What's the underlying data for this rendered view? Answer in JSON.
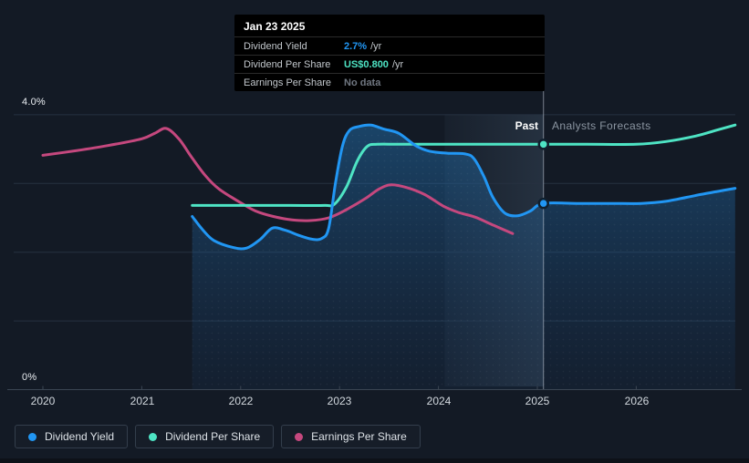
{
  "tooltip": {
    "date": "Jan 23 2025",
    "rows": [
      {
        "label": "Dividend Yield",
        "value": "2.7%",
        "unit": " /yr",
        "color_key": "dividend_yield"
      },
      {
        "label": "Dividend Per Share",
        "value": "US$0.800",
        "unit": " /yr",
        "color_key": "dividend_per_share"
      },
      {
        "label": "Earnings Per Share",
        "value": "No data",
        "unit": "",
        "color_key": "muted"
      }
    ]
  },
  "chart": {
    "past_label": "Past",
    "forecast_label": "Analysts Forecasts",
    "y_axis": {
      "top_label": "4.0%",
      "bottom_label": "0%"
    }
  },
  "legend": [
    {
      "label": "Dividend Yield",
      "color_key": "dividend_yield"
    },
    {
      "label": "Dividend Per Share",
      "color_key": "dividend_per_share"
    },
    {
      "label": "Earnings Per Share",
      "color_key": "earnings_per_share"
    }
  ],
  "colors": {
    "dividend_yield": "#2196f3",
    "dividend_per_share": "#4ee4c4",
    "earnings_per_share": "#c5487e",
    "muted": "#6f7680",
    "area_top": "rgba(38,132,205,0.40)",
    "area_bottom": "rgba(28,80,140,0.10)",
    "band_from": "rgba(150,190,230,0.04)",
    "band_to": "rgba(160,205,245,0.13)",
    "divider": "rgba(205,215,228,0.55)"
  },
  "chart_data": {
    "type": "line",
    "title": "Dividend history and forecast",
    "ylabel": "%",
    "ylim": [
      0,
      4
    ],
    "xlim": [
      2020,
      2027
    ],
    "grid": "horizontal, 1% steps",
    "legend_position": "bottom-left",
    "x_ticks": [
      "2020",
      "2021",
      "2022",
      "2023",
      "2024",
      "2025",
      "2026"
    ],
    "x_tick_years": [
      2020,
      2021,
      2022,
      2023,
      2024,
      2025,
      2026
    ],
    "divider": {
      "x": 2025.062,
      "note": "Past | Analysts Forecasts split at Jan 23 2025"
    },
    "highlight_band": {
      "x_from": 2024.063,
      "x_to": 2025.062
    },
    "series": [
      {
        "name": "Earnings Per Share",
        "color_key": "earnings_per_share",
        "unit": "% of price (left axis)",
        "points": [
          [
            2020.0,
            3.41
          ],
          [
            2020.3,
            3.47
          ],
          [
            2020.65,
            3.55
          ],
          [
            2021.0,
            3.65
          ],
          [
            2021.13,
            3.73
          ],
          [
            2021.25,
            3.8
          ],
          [
            2021.38,
            3.64
          ],
          [
            2021.5,
            3.39
          ],
          [
            2021.64,
            3.12
          ],
          [
            2021.78,
            2.92
          ],
          [
            2022.0,
            2.72
          ],
          [
            2022.15,
            2.6
          ],
          [
            2022.33,
            2.52
          ],
          [
            2022.52,
            2.47
          ],
          [
            2022.7,
            2.46
          ],
          [
            2022.89,
            2.5
          ],
          [
            2023.07,
            2.62
          ],
          [
            2023.26,
            2.78
          ],
          [
            2023.4,
            2.92
          ],
          [
            2023.52,
            2.98
          ],
          [
            2023.68,
            2.94
          ],
          [
            2023.86,
            2.84
          ],
          [
            2024.05,
            2.67
          ],
          [
            2024.2,
            2.58
          ],
          [
            2024.37,
            2.51
          ],
          [
            2024.56,
            2.39
          ],
          [
            2024.75,
            2.27
          ]
        ],
        "ends_at": "late 2024 (No data afterwards)"
      },
      {
        "name": "Dividend Per Share",
        "color_key": "dividend_per_share",
        "unit": "US$ per year (hidden scale; 0.800 corresponds to 3.57 on left axis)",
        "points": [
          [
            2021.51,
            2.68
          ],
          [
            2022.0,
            2.68
          ],
          [
            2022.5,
            2.68
          ],
          [
            2022.85,
            2.68
          ],
          [
            2022.95,
            2.7
          ],
          [
            2023.07,
            2.95
          ],
          [
            2023.18,
            3.33
          ],
          [
            2023.28,
            3.54
          ],
          [
            2023.38,
            3.57
          ],
          [
            2023.6,
            3.57
          ],
          [
            2024.0,
            3.57
          ],
          [
            2024.5,
            3.57
          ],
          [
            2025.06,
            3.57
          ],
          [
            2025.5,
            3.57
          ],
          [
            2026.0,
            3.57
          ],
          [
            2026.3,
            3.61
          ],
          [
            2026.6,
            3.69
          ],
          [
            2026.8,
            3.77
          ],
          [
            2027.0,
            3.85
          ]
        ],
        "usd_estimates": [
          0.6,
          0.6,
          0.6,
          0.6,
          0.604,
          0.661,
          0.746,
          0.793,
          0.8,
          0.8,
          0.8,
          0.8,
          0.8,
          0.8,
          0.8,
          0.809,
          0.827,
          0.845,
          0.863
        ],
        "marker": {
          "x": 2025.062,
          "y": 3.57,
          "value": "US$0.800 /yr"
        }
      },
      {
        "name": "Dividend Yield",
        "color_key": "dividend_yield",
        "unit": "% per year (left axis)",
        "area": true,
        "points": [
          [
            2021.51,
            2.52
          ],
          [
            2021.62,
            2.32
          ],
          [
            2021.73,
            2.17
          ],
          [
            2021.92,
            2.07
          ],
          [
            2022.06,
            2.06
          ],
          [
            2022.2,
            2.19
          ],
          [
            2022.32,
            2.35
          ],
          [
            2022.45,
            2.32
          ],
          [
            2022.58,
            2.25
          ],
          [
            2022.72,
            2.19
          ],
          [
            2022.82,
            2.2
          ],
          [
            2022.89,
            2.35
          ],
          [
            2022.96,
            3.02
          ],
          [
            2023.03,
            3.55
          ],
          [
            2023.1,
            3.77
          ],
          [
            2023.2,
            3.83
          ],
          [
            2023.32,
            3.85
          ],
          [
            2023.45,
            3.79
          ],
          [
            2023.6,
            3.73
          ],
          [
            2023.77,
            3.55
          ],
          [
            2023.91,
            3.47
          ],
          [
            2024.09,
            3.44
          ],
          [
            2024.27,
            3.43
          ],
          [
            2024.36,
            3.36
          ],
          [
            2024.46,
            3.1
          ],
          [
            2024.55,
            2.8
          ],
          [
            2024.67,
            2.57
          ],
          [
            2024.8,
            2.53
          ],
          [
            2024.93,
            2.6
          ],
          [
            2025.06,
            2.71
          ],
          [
            2025.4,
            2.71
          ],
          [
            2025.75,
            2.71
          ],
          [
            2026.05,
            2.71
          ],
          [
            2026.3,
            2.74
          ],
          [
            2026.65,
            2.84
          ],
          [
            2027.0,
            2.93
          ]
        ],
        "marker": {
          "x": 2025.062,
          "y": 2.71,
          "value": "2.7% /yr"
        }
      }
    ]
  }
}
